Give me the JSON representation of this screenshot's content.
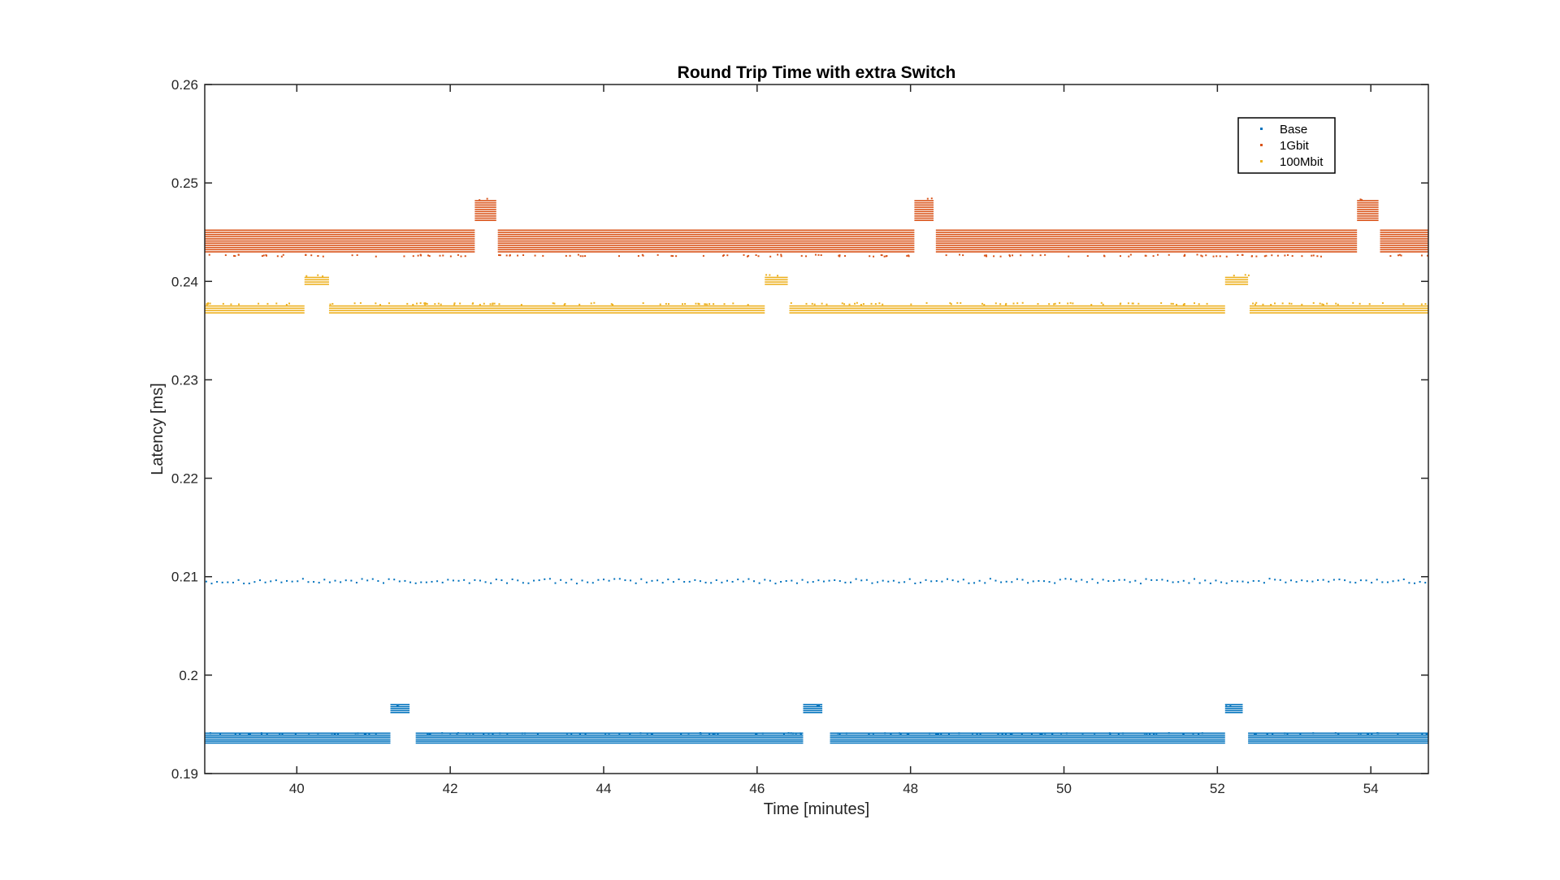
{
  "chart_data": {
    "type": "scatter",
    "title": "Round Trip Time with extra Switch",
    "xlabel": "Time [minutes]",
    "ylabel": "Latency [ms]",
    "xlim": [
      38.8,
      54.75
    ],
    "ylim": [
      0.19,
      0.26
    ],
    "xticks": [
      40,
      42,
      44,
      46,
      48,
      50,
      52,
      54
    ],
    "yticks": [
      0.19,
      0.2,
      0.21,
      0.22,
      0.23,
      0.24,
      0.25,
      0.26
    ],
    "xtick_labels": [
      "40",
      "42",
      "44",
      "46",
      "48",
      "50",
      "52",
      "54"
    ],
    "ytick_labels": [
      "0.19",
      "0.2",
      "0.21",
      "0.22",
      "0.23",
      "0.24",
      "0.25",
      "0.26"
    ],
    "grid": false,
    "legend_position": "top-right",
    "series": [
      {
        "name": "Base",
        "color": "#0072BD",
        "segments": [
          {
            "x_start": 38.8,
            "x_end": 41.22,
            "y_min": 0.1931,
            "y_max": 0.1941,
            "outlier_y": 0.1941
          },
          {
            "x_start": 41.22,
            "x_end": 41.47,
            "y_min": 0.1962,
            "y_max": 0.197,
            "outlier_y": 0.197
          },
          {
            "x_start": 41.55,
            "x_end": 46.6,
            "y_min": 0.1931,
            "y_max": 0.1941,
            "outlier_y": 0.1941
          },
          {
            "x_start": 46.6,
            "x_end": 46.85,
            "y_min": 0.1962,
            "y_max": 0.197,
            "outlier_y": 0.197
          },
          {
            "x_start": 46.95,
            "x_end": 52.1,
            "y_min": 0.1931,
            "y_max": 0.1941,
            "outlier_y": 0.1941
          },
          {
            "x_start": 52.1,
            "x_end": 52.33,
            "y_min": 0.1962,
            "y_max": 0.197,
            "outlier_y": 0.197
          },
          {
            "x_start": 52.4,
            "x_end": 54.75,
            "y_min": 0.1931,
            "y_max": 0.1941,
            "outlier_y": 0.1941
          }
        ],
        "sparse": {
          "y_min": 0.2093,
          "y_max": 0.2098,
          "x_step": 0.07
        }
      },
      {
        "name": "1Gbit",
        "color": "#D95319",
        "segments": [
          {
            "x_start": 38.8,
            "x_end": 42.32,
            "y_min": 0.243,
            "y_max": 0.2452,
            "outlier_y": 0.2427
          },
          {
            "x_start": 42.32,
            "x_end": 42.6,
            "y_min": 0.2462,
            "y_max": 0.2482,
            "outlier_y": 0.2484
          },
          {
            "x_start": 42.62,
            "x_end": 48.05,
            "y_min": 0.243,
            "y_max": 0.2452,
            "outlier_y": 0.2427
          },
          {
            "x_start": 48.05,
            "x_end": 48.3,
            "y_min": 0.2462,
            "y_max": 0.2482,
            "outlier_y": 0.2485
          },
          {
            "x_start": 48.33,
            "x_end": 53.82,
            "y_min": 0.243,
            "y_max": 0.2452,
            "outlier_y": 0.2427
          },
          {
            "x_start": 53.82,
            "x_end": 54.1,
            "y_min": 0.2462,
            "y_max": 0.2482,
            "outlier_y": 0.2484
          },
          {
            "x_start": 54.12,
            "x_end": 54.75,
            "y_min": 0.243,
            "y_max": 0.2452,
            "outlier_y": 0.2427
          }
        ]
      },
      {
        "name": "100Mbit",
        "color": "#EDB120",
        "segments": [
          {
            "x_start": 38.8,
            "x_end": 40.1,
            "y_min": 0.2368,
            "y_max": 0.2375,
            "outlier_y": 0.2378
          },
          {
            "x_start": 40.1,
            "x_end": 40.42,
            "y_min": 0.2397,
            "y_max": 0.2404,
            "outlier_y": 0.2407
          },
          {
            "x_start": 40.42,
            "x_end": 46.1,
            "y_min": 0.2368,
            "y_max": 0.2375,
            "outlier_y": 0.2378
          },
          {
            "x_start": 46.1,
            "x_end": 46.4,
            "y_min": 0.2397,
            "y_max": 0.2404,
            "outlier_y": 0.2407
          },
          {
            "x_start": 46.42,
            "x_end": 52.1,
            "y_min": 0.2368,
            "y_max": 0.2375,
            "outlier_y": 0.2378
          },
          {
            "x_start": 52.1,
            "x_end": 52.4,
            "y_min": 0.2397,
            "y_max": 0.2404,
            "outlier_y": 0.2407
          },
          {
            "x_start": 52.42,
            "x_end": 54.75,
            "y_min": 0.2368,
            "y_max": 0.2375,
            "outlier_y": 0.2378
          }
        ]
      }
    ]
  }
}
